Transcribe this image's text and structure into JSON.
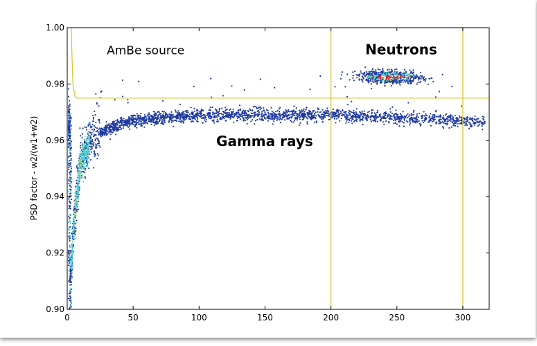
{
  "chart_data": {
    "type": "scatter",
    "title": "",
    "xlabel": "",
    "ylabel": "PSD factor - w2/(w1+w2)",
    "xlim": [
      0,
      320
    ],
    "ylim": [
      0.9,
      1.0
    ],
    "x_ticks": [
      0,
      50,
      100,
      150,
      200,
      250,
      300
    ],
    "y_ticks": [
      0.9,
      0.92,
      0.94,
      0.96,
      0.98,
      1.0
    ],
    "x_tick_labels": [
      "0",
      "50",
      "100",
      "150",
      "200",
      "250",
      "300"
    ],
    "y_tick_labels": [
      "0.90",
      "0.92",
      "0.94",
      "0.96",
      "0.98",
      "1.00"
    ],
    "grid": false,
    "annotations": [
      {
        "text": "AmBe source",
        "x": 30,
        "y": 0.9905,
        "style": "normal"
      },
      {
        "text": "Neutrons",
        "x": 226,
        "y": 0.9905,
        "style": "bold"
      },
      {
        "text": "Gamma rays",
        "x": 113,
        "y": 0.958,
        "style": "bold"
      }
    ],
    "cut_lines": [
      {
        "kind": "vertical",
        "x": 200
      },
      {
        "kind": "vertical",
        "x": 300
      },
      {
        "kind": "horizontal",
        "y": 0.975,
        "x_from": 7,
        "x_to": 320
      },
      {
        "kind": "curve",
        "points": [
          [
            3,
            1.0
          ],
          [
            3.6,
            0.99
          ],
          [
            4.3,
            0.98
          ],
          [
            6,
            0.9755
          ],
          [
            8,
            0.975
          ]
        ]
      }
    ],
    "series": [
      {
        "name": "",
        "color_scale": "density (blue-cyan-yellow-red)",
        "regions": [
          {
            "label": "gamma band",
            "x_range": [
              1,
              317
            ],
            "y_trend": [
              [
                2,
                0.905
              ],
              [
                5,
                0.93
              ],
              [
                10,
                0.952
              ],
              [
                20,
                0.962
              ],
              [
                50,
                0.967
              ],
              [
                100,
                0.969
              ],
              [
                200,
                0.969
              ],
              [
                300,
                0.967
              ],
              [
                317,
                0.966
              ]
            ]
          },
          {
            "label": "neutron cluster",
            "x_center": 245,
            "y_center": 0.9825,
            "x_extent": [
              205,
              290
            ],
            "y_extent": [
              0.979,
              0.985
            ]
          }
        ]
      }
    ],
    "colors": {
      "points": "#1f3aa0",
      "dense_points": "#4fd0d8",
      "cut_lines": "#d6c832",
      "hot": "#d42020"
    }
  }
}
